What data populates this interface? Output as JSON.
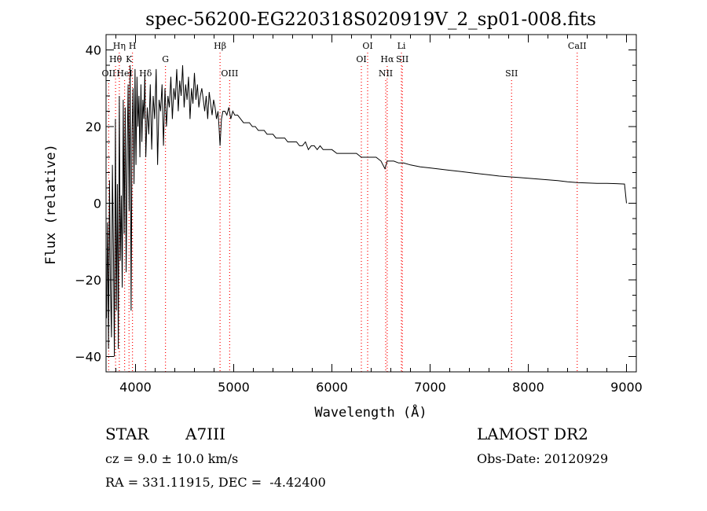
{
  "chart_data": {
    "type": "line",
    "title": "spec-56200-EG220318S020919V_2_sp01-008.fits",
    "xlabel": "Wavelength (Å)",
    "ylabel": "Flux (relative)",
    "xlim": [
      3700,
      9100
    ],
    "ylim": [
      -44,
      44
    ],
    "x_ticks": [
      4000,
      5000,
      6000,
      7000,
      8000,
      9000
    ],
    "y_ticks": [
      -40,
      -20,
      0,
      20,
      40
    ],
    "grid": false,
    "line_color": "#000000",
    "marker_color": "#ff0000",
    "lines": [
      {
        "label": "OII",
        "x": 3727,
        "row": 3
      },
      {
        "label": "Hθ",
        "x": 3797,
        "row": 2
      },
      {
        "label": "Hη",
        "x": 3835,
        "row": 1
      },
      {
        "label": "HeI",
        "x": 3889,
        "row": 3
      },
      {
        "label": "K",
        "x": 3934,
        "row": 2
      },
      {
        "label": "H",
        "x": 3969,
        "row": 1
      },
      {
        "label": "Hδ",
        "x": 4102,
        "row": 3
      },
      {
        "label": "G",
        "x": 4305,
        "row": 2
      },
      {
        "label": "Hβ",
        "x": 4861,
        "row": 1
      },
      {
        "label": "OIII",
        "x": 4959,
        "row": 3
      },
      {
        "label": "OI",
        "x": 6300,
        "row": 2
      },
      {
        "label": "OI",
        "x": 6364,
        "row": 1
      },
      {
        "label": "NII",
        "x": 6548,
        "row": 3
      },
      {
        "label": "Hα",
        "x": 6563,
        "row": 2
      },
      {
        "label": "Li",
        "x": 6708,
        "row": 1
      },
      {
        "label": "SII",
        "x": 6717,
        "row": 2
      },
      {
        "label": "SII",
        "x": 7830,
        "row": 3
      },
      {
        "label": "CaII",
        "x": 8498,
        "row": 1
      }
    ],
    "series": [
      {
        "x": [
          3705,
          3715,
          3725,
          3735,
          3745,
          3755,
          3765,
          3775,
          3785,
          3795,
          3805,
          3815,
          3825,
          3835,
          3845,
          3855,
          3865,
          3875,
          3885,
          3895,
          3905,
          3915,
          3925,
          3935,
          3945,
          3955,
          3965,
          3975,
          3985,
          3995,
          4005,
          4015,
          4025,
          4035,
          4045,
          4055,
          4065,
          4075,
          4085,
          4095,
          4105,
          4120,
          4135,
          4150,
          4165,
          4180,
          4195,
          4210,
          4225,
          4240,
          4255,
          4270,
          4285,
          4300,
          4315,
          4330,
          4345,
          4360,
          4375,
          4390,
          4405,
          4420,
          4435,
          4450,
          4465,
          4480,
          4495,
          4510,
          4525,
          4540,
          4555,
          4570,
          4585,
          4600,
          4615,
          4630,
          4645,
          4660,
          4675,
          4690,
          4705,
          4720,
          4735,
          4750,
          4765,
          4780,
          4795,
          4810,
          4825,
          4840,
          4850,
          4861,
          4875,
          4890,
          4910,
          4930,
          4950,
          4970,
          4990,
          5010,
          5040,
          5070,
          5100,
          5130,
          5160,
          5190,
          5220,
          5250,
          5280,
          5310,
          5340,
          5370,
          5400,
          5430,
          5460,
          5490,
          5520,
          5550,
          5580,
          5610,
          5640,
          5670,
          5700,
          5730,
          5760,
          5790,
          5820,
          5850,
          5880,
          5910,
          5950,
          6000,
          6050,
          6100,
          6150,
          6200,
          6250,
          6300,
          6350,
          6400,
          6450,
          6500,
          6540,
          6563,
          6590,
          6630,
          6680,
          6730,
          6800,
          6900,
          7000,
          7100,
          7200,
          7300,
          7400,
          7500,
          7600,
          7700,
          7800,
          7900,
          8000,
          8100,
          8200,
          8300,
          8400,
          8500,
          8600,
          8700,
          8800,
          8900,
          8980,
          9000
        ],
        "y": [
          -30,
          -5,
          -38,
          6,
          -22,
          -35,
          10,
          -12,
          -40,
          22,
          -28,
          5,
          -38,
          28,
          -15,
          2,
          -22,
          27,
          -8,
          25,
          -18,
          14,
          31,
          -2,
          36,
          -28,
          18,
          30,
          5,
          35,
          10,
          33,
          20,
          28,
          12,
          31,
          16,
          27,
          22,
          34,
          12,
          25,
          18,
          31,
          14,
          28,
          22,
          35,
          10,
          27,
          24,
          31,
          15,
          30,
          20,
          28,
          25,
          33,
          22,
          30,
          27,
          35,
          24,
          32,
          28,
          36,
          25,
          31,
          27,
          33,
          22,
          30,
          26,
          34,
          27,
          31,
          25,
          28,
          30,
          27,
          24,
          28,
          22,
          29,
          26,
          23,
          27,
          25,
          22,
          24,
          20,
          15,
          22,
          24,
          24,
          23,
          25,
          22,
          24,
          23,
          23,
          22,
          21,
          21,
          21,
          20,
          20,
          19,
          19,
          19,
          18,
          18,
          18,
          17,
          17,
          17,
          17,
          16,
          16,
          16,
          16,
          15,
          15,
          16,
          14,
          15,
          15,
          14,
          15,
          14,
          14,
          14,
          13,
          13,
          13,
          13,
          13,
          12,
          12,
          12,
          12,
          11,
          9,
          11,
          11,
          11,
          10.5,
          10.5,
          10,
          9.5,
          9.2,
          8.9,
          8.6,
          8.3,
          8,
          7.7,
          7.4,
          7.1,
          6.9,
          6.7,
          6.5,
          6.3,
          6.1,
          5.9,
          5.6,
          5.4,
          5.3,
          5.2,
          5.2,
          5.1,
          5.0,
          0
        ]
      }
    ]
  },
  "info": {
    "object_class": "STAR",
    "subclass": "A7III",
    "survey": "LAMOST DR2",
    "redshift": "cz = 9.0 ± 10.0 km/s",
    "obs_date": "Obs-Date: 20120929",
    "coords": "RA = 331.11915, DEC =  -4.42400"
  }
}
